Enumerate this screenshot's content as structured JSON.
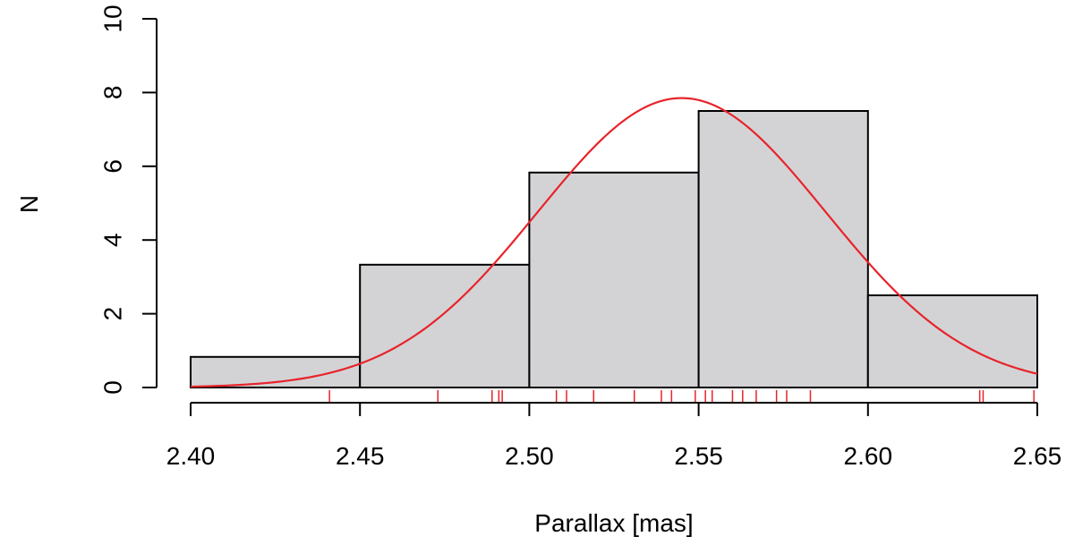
{
  "chart_data": {
    "type": "bar",
    "subtype": "histogram-with-density-curve-and-rug",
    "xlabel": "Parallax [mas]",
    "ylabel": "N",
    "xlim": [
      2.4,
      2.65
    ],
    "ylim": [
      0,
      10
    ],
    "x_ticks": [
      "2.40",
      "2.45",
      "2.50",
      "2.55",
      "2.60",
      "2.65"
    ],
    "y_ticks": [
      "0",
      "2",
      "4",
      "6",
      "8",
      "10"
    ],
    "bins": [
      {
        "from": 2.4,
        "to": 2.45,
        "value": 0.83
      },
      {
        "from": 2.45,
        "to": 2.5,
        "value": 3.33
      },
      {
        "from": 2.5,
        "to": 2.55,
        "value": 5.83
      },
      {
        "from": 2.55,
        "to": 2.6,
        "value": 7.5
      },
      {
        "from": 2.6,
        "to": 2.65,
        "value": 2.5
      }
    ],
    "bar_color": "#d3d3d6",
    "bar_edge_color": "#000000",
    "curve": {
      "type": "normal",
      "mean": 2.545,
      "sd": 0.0425,
      "peak": 7.85,
      "color": "#e8232a"
    },
    "rug": {
      "color": "#e8232a",
      "values": [
        2.441,
        2.473,
        2.489,
        2.491,
        2.492,
        2.508,
        2.511,
        2.519,
        2.531,
        2.539,
        2.542,
        2.549,
        2.552,
        2.554,
        2.56,
        2.563,
        2.567,
        2.573,
        2.576,
        2.583,
        2.633,
        2.634,
        2.649
      ]
    },
    "grid": false,
    "legend": "none"
  }
}
